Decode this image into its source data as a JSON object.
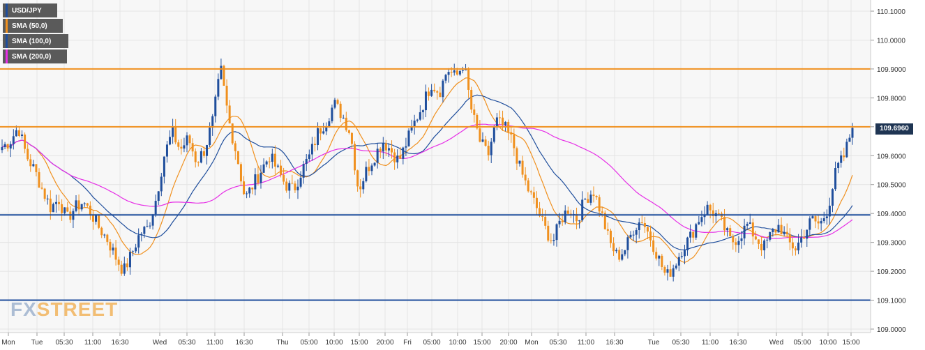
{
  "legend": [
    {
      "label": "USD/JPY",
      "color": "#1f4e9c"
    },
    {
      "label": "SMA (50,0)",
      "color": "#f0901e"
    },
    {
      "label": "SMA (100,0)",
      "color": "#1f4e9c"
    },
    {
      "label": "SMA (200,0)",
      "color": "#e62ee6"
    }
  ],
  "watermark": {
    "part1": "FX",
    "part2": "STREET"
  },
  "colors": {
    "bull": "#1f4e9c",
    "bear": "#f0901e",
    "sma50": "#f0901e",
    "sma100": "#1f4e9c",
    "sma200": "#e62ee6",
    "grid": "#e4e4e4",
    "plot_bg": "#f7f7f7",
    "level_orange": "#f0901e",
    "level_blue": "#1f4e9c"
  },
  "chart_data": {
    "type": "candlestick",
    "title": "",
    "xlabel": "",
    "ylabel": "",
    "ylim": [
      109.0,
      110.12
    ],
    "yticks": [
      "110.1000",
      "110.0000",
      "109.9000",
      "109.8000",
      "109.7000",
      "109.6000",
      "109.5000",
      "109.4000",
      "109.3000",
      "109.2000",
      "109.1000",
      "109.0000"
    ],
    "xticks": [
      "Mon",
      "Tue",
      "05:30",
      "11:00",
      "16:30",
      "Wed",
      "05:30",
      "11:00",
      "16:30",
      "Thu",
      "05:00",
      "10:00",
      "15:00",
      "20:00",
      "Fri",
      "05:00",
      "10:00",
      "15:00",
      "20:00",
      "Mon",
      "05:30",
      "11:00",
      "16:30",
      "Tue",
      "05:30",
      "11:00",
      "16:30",
      "Wed",
      "05:00",
      "10:00",
      "15:00"
    ],
    "last_price": "109.6960",
    "levels": [
      {
        "value": 109.9,
        "color": "orange"
      },
      {
        "value": 109.7,
        "color": "orange"
      },
      {
        "value": 109.395,
        "color": "blue"
      },
      {
        "value": 109.1,
        "color": "blue"
      }
    ],
    "price_path": [
      109.63,
      109.65,
      109.7,
      109.6,
      109.55,
      109.48,
      109.42,
      109.45,
      109.38,
      109.42,
      109.44,
      109.4,
      109.35,
      109.31,
      109.25,
      109.2,
      109.26,
      109.33,
      109.35,
      109.45,
      109.6,
      109.68,
      109.62,
      109.66,
      109.58,
      109.62,
      109.72,
      109.9,
      109.72,
      109.6,
      109.45,
      109.5,
      109.55,
      109.6,
      109.55,
      109.5,
      109.48,
      109.55,
      109.6,
      109.68,
      109.72,
      109.78,
      109.74,
      109.68,
      109.48,
      109.55,
      109.6,
      109.65,
      109.62,
      109.58,
      109.65,
      109.72,
      109.78,
      109.85,
      109.82,
      109.9,
      109.87,
      109.92,
      109.75,
      109.65,
      109.6,
      109.72,
      109.7,
      109.65,
      109.55,
      109.48,
      109.42,
      109.35,
      109.3,
      109.38,
      109.42,
      109.38,
      109.45,
      109.48,
      109.4,
      109.3,
      109.25,
      109.28,
      109.35,
      109.38,
      109.32,
      109.25,
      109.18,
      109.22,
      109.28,
      109.32,
      109.38,
      109.42,
      109.4,
      109.36,
      109.3,
      109.32,
      109.36,
      109.32,
      109.28,
      109.33,
      109.36,
      109.3,
      109.28,
      109.33,
      109.38,
      109.36,
      109.42,
      109.55,
      109.6,
      109.7
    ]
  },
  "dates": {
    "labels": [
      "Mon",
      "Tue",
      "Wed",
      "Thu",
      "Fri",
      "Mon",
      "Tue",
      "Wed"
    ]
  }
}
